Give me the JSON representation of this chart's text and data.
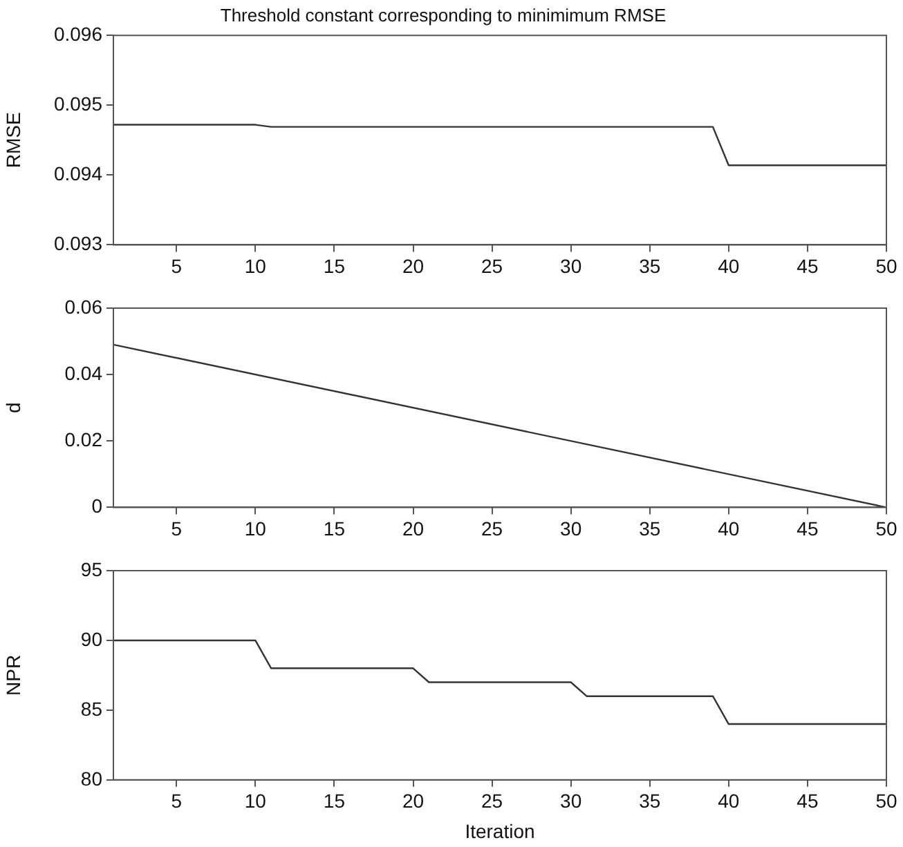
{
  "chart_data": [
    {
      "type": "line",
      "title": "Threshold constant corresponding to minimimum RMSE",
      "ylabel": "RMSE",
      "xlim": [
        1,
        50
      ],
      "xticks": [
        5,
        10,
        15,
        20,
        25,
        30,
        35,
        40,
        45,
        50
      ],
      "ylim": [
        0.093,
        0.096
      ],
      "yticks": [
        0.093,
        0.094,
        0.095,
        0.096
      ],
      "grid": false,
      "legend": false,
      "series": [
        {
          "color": "#333333",
          "x": [
            1,
            10,
            11,
            39,
            40,
            50
          ],
          "values": [
            0.09472,
            0.09472,
            0.09469,
            0.09469,
            0.09414,
            0.09414
          ]
        }
      ]
    },
    {
      "type": "line",
      "ylabel": "d",
      "xlim": [
        1,
        50
      ],
      "xticks": [
        5,
        10,
        15,
        20,
        25,
        30,
        35,
        40,
        45,
        50
      ],
      "ylim": [
        0,
        0.06
      ],
      "yticks": [
        0,
        0.02,
        0.04,
        0.06
      ],
      "grid": false,
      "legend": false,
      "series": [
        {
          "color": "#333333",
          "x": [
            1,
            50
          ],
          "values": [
            0.049,
            0
          ]
        }
      ]
    },
    {
      "type": "line",
      "xlabel": "Iteration",
      "ylabel": "NPR",
      "xlim": [
        1,
        50
      ],
      "xticks": [
        5,
        10,
        15,
        20,
        25,
        30,
        35,
        40,
        45,
        50
      ],
      "ylim": [
        80,
        95
      ],
      "yticks": [
        80,
        85,
        90,
        95
      ],
      "grid": false,
      "legend": false,
      "series": [
        {
          "color": "#333333",
          "x": [
            1,
            10,
            11,
            20,
            21,
            30,
            31,
            39,
            40,
            50
          ],
          "values": [
            90,
            90,
            88,
            88,
            87,
            87,
            86,
            86,
            84,
            84
          ]
        }
      ]
    }
  ]
}
